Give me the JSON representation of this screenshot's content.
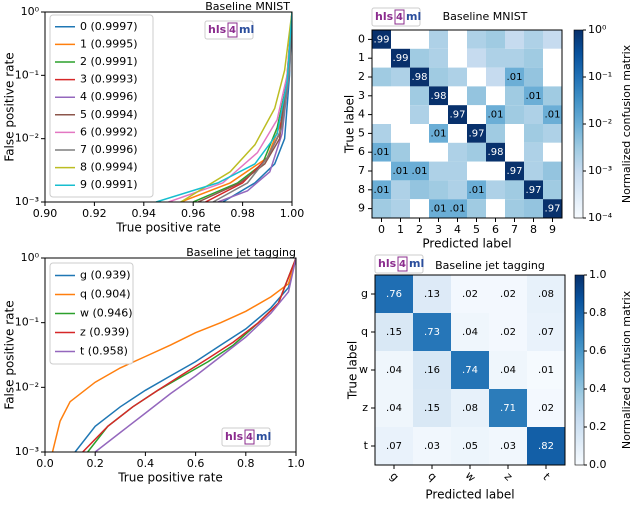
{
  "chart_data": [
    {
      "type": "roc",
      "title": "Baseline MNIST",
      "logo": [
        "hls",
        "4",
        "ml"
      ],
      "xlabel": "True positive rate",
      "ylabel": "False positive rate",
      "log_y": true,
      "xlim": [
        0.9,
        1.0
      ],
      "ylim": [
        0.001,
        1
      ],
      "xticks": [
        {
          "value": 0.9,
          "label": "0.90"
        },
        {
          "value": 0.92,
          "label": "0.92"
        },
        {
          "value": 0.94,
          "label": "0.94"
        },
        {
          "value": 0.96,
          "label": "0.96"
        },
        {
          "value": 0.98,
          "label": "0.98"
        },
        {
          "value": 1.0,
          "label": "1.00"
        }
      ],
      "yticks": [
        {
          "value": 0.001,
          "label": "10⁻³"
        },
        {
          "value": 0.01,
          "label": "10⁻²"
        },
        {
          "value": 0.1,
          "label": "10⁻¹"
        },
        {
          "value": 1,
          "label": "10⁰"
        }
      ],
      "series": [
        {
          "name": "0 (0.9997)",
          "color": "#1f77b4",
          "x": [
            0.972,
            0.985,
            0.993,
            0.997,
            0.999,
            1.0
          ],
          "values": [
            0.001,
            0.002,
            0.004,
            0.01,
            0.1,
            1
          ]
        },
        {
          "name": "1 (0.9995)",
          "color": "#ff7f0e",
          "x": [
            0.955,
            0.975,
            0.99,
            0.996,
            0.999,
            1.0
          ],
          "values": [
            0.001,
            0.002,
            0.005,
            0.02,
            0.15,
            1
          ]
        },
        {
          "name": "2 (0.9991)",
          "color": "#2ca02c",
          "x": [
            0.96,
            0.978,
            0.988,
            0.994,
            0.998,
            1.0
          ],
          "values": [
            0.001,
            0.002,
            0.004,
            0.015,
            0.08,
            1
          ]
        },
        {
          "name": "3 (0.9993)",
          "color": "#d62728",
          "x": [
            0.965,
            0.98,
            0.99,
            0.995,
            0.998,
            1.0
          ],
          "values": [
            0.001,
            0.002,
            0.005,
            0.012,
            0.1,
            1
          ]
        },
        {
          "name": "4 (0.9996)",
          "color": "#9467bd",
          "x": [
            0.97,
            0.982,
            0.991,
            0.996,
            0.999,
            1.0
          ],
          "values": [
            0.001,
            0.0015,
            0.003,
            0.012,
            0.12,
            1
          ]
        },
        {
          "name": "5 (0.9994)",
          "color": "#8c564b",
          "x": [
            0.962,
            0.979,
            0.989,
            0.995,
            0.998,
            1.0
          ],
          "values": [
            0.001,
            0.002,
            0.004,
            0.01,
            0.09,
            1
          ]
        },
        {
          "name": "6 (0.9992)",
          "color": "#e377c2",
          "x": [
            0.95,
            0.972,
            0.986,
            0.994,
            0.998,
            1.0
          ],
          "values": [
            0.001,
            0.002,
            0.006,
            0.02,
            0.1,
            1
          ]
        },
        {
          "name": "7 (0.9996)",
          "color": "#7f7f7f",
          "x": [
            0.968,
            0.982,
            0.99,
            0.996,
            0.999,
            1.0
          ],
          "values": [
            0.001,
            0.002,
            0.005,
            0.015,
            0.12,
            1
          ]
        },
        {
          "name": "8 (0.9994)",
          "color": "#bcbd22",
          "x": [
            0.955,
            0.975,
            0.985,
            0.993,
            0.997,
            1.0
          ],
          "values": [
            0.001,
            0.003,
            0.008,
            0.03,
            0.12,
            1
          ]
        },
        {
          "name": "9 (0.9991)",
          "color": "#17becf",
          "x": [
            0.945,
            0.97,
            0.985,
            0.994,
            0.998,
            1.0
          ],
          "values": [
            0.001,
            0.002,
            0.004,
            0.012,
            0.08,
            1
          ]
        }
      ]
    },
    {
      "type": "heatmap",
      "title": "Baseline MNIST",
      "logo": [
        "hls",
        "4",
        "ml"
      ],
      "xlabel": "Predicted label",
      "ylabel": "True label",
      "colorbar_label": "Normalized confusion matrix",
      "color_log": true,
      "clim": [
        0.0001,
        1
      ],
      "cticks": [
        {
          "value": 1,
          "label": "10⁰"
        },
        {
          "value": 0.1,
          "label": "10⁻¹"
        },
        {
          "value": 0.01,
          "label": "10⁻²"
        },
        {
          "value": 0.001,
          "label": "10⁻³"
        },
        {
          "value": 0.0001,
          "label": "10⁻⁴"
        }
      ],
      "categories": [
        "0",
        "1",
        "2",
        "3",
        "4",
        "5",
        "6",
        "7",
        "8",
        "9"
      ],
      "values": [
        [
          0.99,
          0,
          0,
          0.002,
          0,
          0.002,
          0.003,
          0.001,
          0.002,
          0.001
        ],
        [
          0,
          0.99,
          0.003,
          0.002,
          0,
          0.001,
          0.002,
          0.002,
          0.003,
          0
        ],
        [
          0.003,
          0.002,
          0.98,
          0.003,
          0.002,
          0,
          0.001,
          0.01,
          0.004,
          0
        ],
        [
          0,
          0,
          0.003,
          0.98,
          0,
          0.004,
          0,
          0.003,
          0.01,
          0.003
        ],
        [
          0,
          0,
          0.002,
          0,
          0.97,
          0,
          0.01,
          0.003,
          0.002,
          0.01
        ],
        [
          0.002,
          0,
          0,
          0.01,
          0,
          0.97,
          0.003,
          0,
          0.003,
          0.002
        ],
        [
          0.01,
          0.003,
          0,
          0,
          0.002,
          0.003,
          0.98,
          0,
          0.002,
          0
        ],
        [
          0,
          0.01,
          0.01,
          0.002,
          0.002,
          0,
          0,
          0.97,
          0.002,
          0.004
        ],
        [
          0.01,
          0.002,
          0.004,
          0.003,
          0.002,
          0.01,
          0.002,
          0.003,
          0.97,
          0.003
        ],
        [
          0.003,
          0.002,
          0,
          0.01,
          0.01,
          0.003,
          0,
          0.003,
          0.004,
          0.97
        ]
      ],
      "value_labels": [
        [
          ".99",
          null,
          null,
          null,
          null,
          null,
          null,
          null,
          null,
          null
        ],
        [
          null,
          ".99",
          null,
          null,
          null,
          null,
          null,
          null,
          null,
          null
        ],
        [
          null,
          null,
          ".98",
          null,
          null,
          null,
          null,
          ".01",
          null,
          null
        ],
        [
          null,
          null,
          null,
          ".98",
          null,
          null,
          null,
          null,
          ".01",
          null
        ],
        [
          null,
          null,
          null,
          null,
          ".97",
          null,
          ".01",
          null,
          null,
          ".01"
        ],
        [
          null,
          null,
          null,
          ".01",
          null,
          ".97",
          null,
          null,
          null,
          null
        ],
        [
          ".01",
          null,
          null,
          null,
          null,
          null,
          ".98",
          null,
          null,
          null
        ],
        [
          null,
          ".01",
          ".01",
          null,
          null,
          null,
          null,
          ".97",
          null,
          null
        ],
        [
          ".01",
          null,
          null,
          null,
          null,
          ".01",
          null,
          null,
          ".97",
          null
        ],
        [
          null,
          null,
          null,
          ".01",
          ".01",
          null,
          null,
          null,
          null,
          ".97"
        ]
      ]
    },
    {
      "type": "roc",
      "title": "Baseline jet tagging",
      "logo": [
        "hls",
        "4",
        "ml"
      ],
      "xlabel": "True positive rate",
      "ylabel": "False positive rate",
      "log_y": true,
      "xlim": [
        0.0,
        1.0
      ],
      "ylim": [
        0.001,
        1
      ],
      "xticks": [
        {
          "value": 0.0,
          "label": "0.0"
        },
        {
          "value": 0.2,
          "label": "0.2"
        },
        {
          "value": 0.4,
          "label": "0.4"
        },
        {
          "value": 0.6,
          "label": "0.6"
        },
        {
          "value": 0.8,
          "label": "0.8"
        },
        {
          "value": 1.0,
          "label": "1.0"
        }
      ],
      "yticks": [
        {
          "value": 0.001,
          "label": "10⁻³"
        },
        {
          "value": 0.01,
          "label": "10⁻²"
        },
        {
          "value": 0.1,
          "label": "10⁻¹"
        },
        {
          "value": 1,
          "label": "10⁰"
        }
      ],
      "series": [
        {
          "name": "g (0.939)",
          "color": "#1f77b4",
          "x": [
            0.12,
            0.2,
            0.3,
            0.4,
            0.5,
            0.6,
            0.7,
            0.8,
            0.9,
            0.97,
            1.0
          ],
          "values": [
            0.001,
            0.0025,
            0.005,
            0.009,
            0.015,
            0.025,
            0.045,
            0.08,
            0.17,
            0.35,
            1
          ]
        },
        {
          "name": "q (0.904)",
          "color": "#ff7f0e",
          "x": [
            0.03,
            0.06,
            0.1,
            0.2,
            0.3,
            0.4,
            0.5,
            0.6,
            0.7,
            0.8,
            0.9,
            0.97,
            1.0
          ],
          "values": [
            0.001,
            0.003,
            0.006,
            0.012,
            0.02,
            0.03,
            0.045,
            0.07,
            0.1,
            0.15,
            0.25,
            0.4,
            1
          ]
        },
        {
          "name": "w (0.946)",
          "color": "#2ca02c",
          "x": [
            0.17,
            0.25,
            0.35,
            0.45,
            0.55,
            0.65,
            0.75,
            0.85,
            0.93,
            1.0
          ],
          "values": [
            0.001,
            0.0025,
            0.005,
            0.009,
            0.015,
            0.025,
            0.045,
            0.1,
            0.2,
            1
          ]
        },
        {
          "name": "z (0.939)",
          "color": "#d62728",
          "x": [
            0.15,
            0.25,
            0.35,
            0.45,
            0.55,
            0.65,
            0.75,
            0.85,
            0.93,
            1.0
          ],
          "values": [
            0.001,
            0.0025,
            0.005,
            0.009,
            0.016,
            0.028,
            0.05,
            0.1,
            0.2,
            1
          ]
        },
        {
          "name": "t (0.958)",
          "color": "#9467bd",
          "x": [
            0.2,
            0.3,
            0.4,
            0.5,
            0.6,
            0.7,
            0.8,
            0.9,
            0.97,
            1.0
          ],
          "values": [
            0.001,
            0.002,
            0.004,
            0.008,
            0.015,
            0.03,
            0.06,
            0.14,
            0.3,
            1
          ]
        }
      ]
    },
    {
      "type": "heatmap",
      "title": "Baseline jet tagging",
      "logo": [
        "hls",
        "4",
        "ml"
      ],
      "xlabel": "Predicted label",
      "ylabel": "True label",
      "colorbar_label": "Normalized confusion matrix",
      "color_log": false,
      "clim": [
        0.0,
        1.0
      ],
      "cticks": [
        {
          "value": 1.0,
          "label": "1.0"
        },
        {
          "value": 0.8,
          "label": "0.8"
        },
        {
          "value": 0.6,
          "label": "0.6"
        },
        {
          "value": 0.4,
          "label": "0.4"
        },
        {
          "value": 0.2,
          "label": "0.2"
        },
        {
          "value": 0.0,
          "label": "0.0"
        }
      ],
      "categories": [
        "g",
        "q",
        "w",
        "z",
        "t"
      ],
      "values": [
        [
          0.76,
          0.13,
          0.02,
          0.02,
          0.08
        ],
        [
          0.15,
          0.73,
          0.04,
          0.02,
          0.07
        ],
        [
          0.04,
          0.16,
          0.74,
          0.04,
          0.01
        ],
        [
          0.04,
          0.15,
          0.08,
          0.71,
          0.02
        ],
        [
          0.07,
          0.03,
          0.05,
          0.03,
          0.82
        ]
      ],
      "value_labels": [
        [
          ".76",
          ".13",
          ".02",
          ".02",
          ".08"
        ],
        [
          ".15",
          ".73",
          ".04",
          ".02",
          ".07"
        ],
        [
          ".04",
          ".16",
          ".74",
          ".04",
          ".01"
        ],
        [
          ".04",
          ".15",
          ".08",
          ".71",
          ".02"
        ],
        [
          ".07",
          ".03",
          ".05",
          ".03",
          ".82"
        ]
      ]
    }
  ]
}
